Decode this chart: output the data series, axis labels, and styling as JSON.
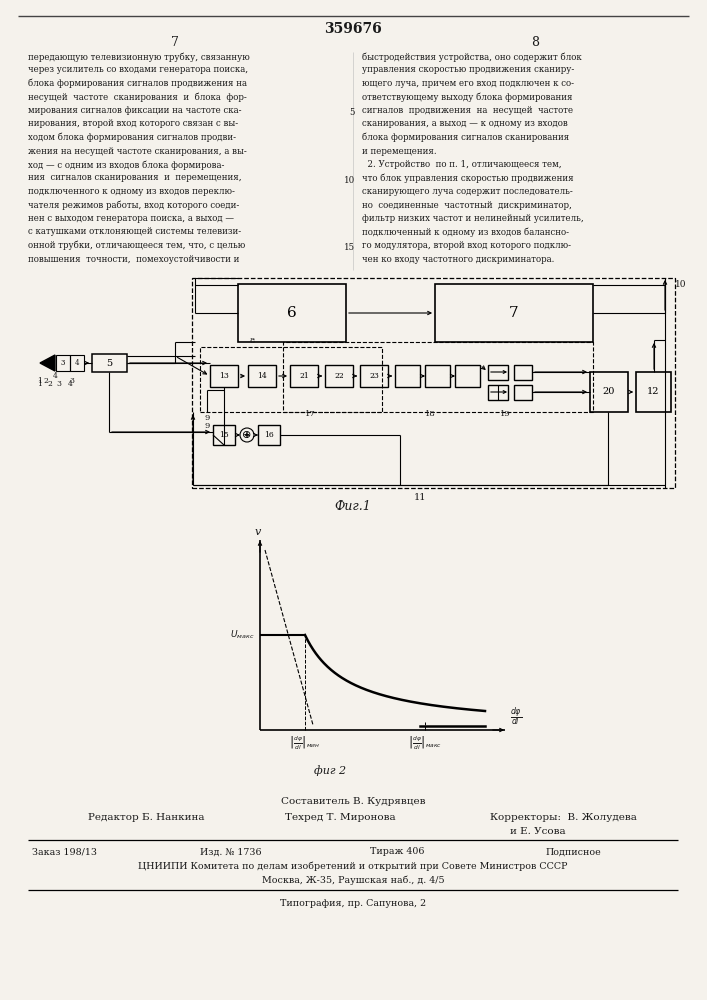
{
  "title": "359676",
  "page_left": "7",
  "page_right": "8",
  "bg_color": "#f5f2ec",
  "text_color": "#1a1a1a",
  "left_text_lines": [
    "передающую телевизионную трубку, связанную",
    "через усилитель со входами генератора поиска,",
    "блока формирования сигналов продвижения на",
    "несущей  частоте  сканирования  и  блока  фор-",
    "мирования сигналов фиксации на частоте ска-",
    "нирования, второй вход которого связан с вы-",
    "ходом блока формирования сигналов продви-",
    "жения на несущей частоте сканирования, а вы-",
    "ход — с одним из входов блока формирова-",
    "ния  сигналов сканирования  и  перемещения,",
    "подключенного к одному из входов переклю-",
    "чателя режимов работы, вход которого соеди-",
    "нен с выходом генератора поиска, а выход —",
    "с катушками отклоняющей системы телевизи-",
    "онной трубки, отличающееся тем, что, с целью",
    "повышения  точности,  помехоустойчивости и"
  ],
  "right_text_lines": [
    "быстродействия устройства, оно содержит блок",
    "управления скоростью продвижения сканиру-",
    "ющего луча, причем его вход подключен к со-",
    "ответствующему выходу блока формирования",
    "сигналов  продвижения  на  несущей  частоте",
    "сканирования, а выход — к одному из входов",
    "блока формирования сигналов сканирования",
    "и перемещения.",
    "  2. Устройство  по п. 1, отличающееся тем,",
    "что блок управления скоростью продвижения",
    "сканирующего луча содержит последователь-",
    "но  соединенные  частотный  дискриминатор,",
    "фильтр низких частот и нелинейный усилитель,",
    "подключенный к одному из входов балансно-",
    "го модулятора, второй вход которого подклю-",
    "чен ко входу частотного дискриминатора."
  ],
  "line_numbers": {
    "5": 4,
    "10": 9,
    "15": 14
  },
  "fig1_label": "Фиг.1",
  "fig2_label": "фиг 2",
  "footer_composer": "Составитель В. Кудрявцев",
  "footer_editor": "Редактор Б. Нанкина",
  "footer_techred": "Техред Т. Миронова",
  "footer_correctors": "Корректоры:  В. Жолудева",
  "footer_correctors2": "и Е. Усова",
  "footer_order": "Заказ 198/13",
  "footer_izd": "Изд. № 1736",
  "footer_tirazh": "Тираж 406",
  "footer_podpisnoe": "Подписное",
  "footer_cniip": "ЦНИИПИ Комитета по делам изобретений и открытий при Совете Министров СССР",
  "footer_moscow": "Москва, Ж-35, Раушская наб., д. 4/5",
  "footer_tipograf": "Типография, пр. Сапунова, 2"
}
